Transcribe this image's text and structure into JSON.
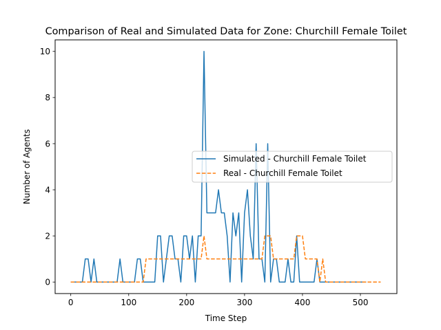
{
  "chart_data": {
    "type": "line",
    "title": "Comparison of Real and Simulated Data for Zone: Churchill Female Toilet",
    "xlabel": "Time Step",
    "ylabel": "Number of Agents",
    "xlim": [
      -27,
      563
    ],
    "ylim": [
      -0.5,
      10.5
    ],
    "xticks": [
      0,
      100,
      200,
      300,
      400,
      500
    ],
    "yticks": [
      0,
      2,
      4,
      6,
      8,
      10
    ],
    "grid": false,
    "legend_position": "center-right",
    "series": [
      {
        "name": "Simulated - Churchill Female Toilet",
        "color": "#1f77b4",
        "style": "solid",
        "points": [
          [
            0,
            0
          ],
          [
            20,
            0
          ],
          [
            25,
            1
          ],
          [
            30,
            1
          ],
          [
            35,
            0
          ],
          [
            40,
            1
          ],
          [
            45,
            0
          ],
          [
            80,
            0
          ],
          [
            85,
            1
          ],
          [
            90,
            0
          ],
          [
            110,
            0
          ],
          [
            115,
            1
          ],
          [
            120,
            1
          ],
          [
            125,
            0
          ],
          [
            145,
            0
          ],
          [
            150,
            2
          ],
          [
            155,
            2
          ],
          [
            160,
            0
          ],
          [
            170,
            2
          ],
          [
            175,
            2
          ],
          [
            180,
            1
          ],
          [
            185,
            1
          ],
          [
            190,
            0
          ],
          [
            195,
            2
          ],
          [
            200,
            2
          ],
          [
            205,
            1
          ],
          [
            210,
            2
          ],
          [
            215,
            0
          ],
          [
            220,
            2
          ],
          [
            225,
            2
          ],
          [
            230,
            10
          ],
          [
            235,
            3
          ],
          [
            240,
            3
          ],
          [
            245,
            3
          ],
          [
            250,
            3
          ],
          [
            255,
            4
          ],
          [
            260,
            3
          ],
          [
            265,
            3
          ],
          [
            270,
            2
          ],
          [
            275,
            0
          ],
          [
            280,
            3
          ],
          [
            285,
            2
          ],
          [
            290,
            3
          ],
          [
            295,
            0
          ],
          [
            300,
            3
          ],
          [
            305,
            4
          ],
          [
            310,
            2
          ],
          [
            315,
            1
          ],
          [
            320,
            6
          ],
          [
            325,
            1
          ],
          [
            330,
            1
          ],
          [
            335,
            0
          ],
          [
            340,
            6
          ],
          [
            345,
            0
          ],
          [
            350,
            1
          ],
          [
            355,
            1
          ],
          [
            360,
            0
          ],
          [
            370,
            0
          ],
          [
            375,
            1
          ],
          [
            380,
            0
          ],
          [
            385,
            0
          ],
          [
            390,
            2
          ],
          [
            395,
            0
          ],
          [
            420,
            0
          ],
          [
            425,
            1
          ],
          [
            430,
            0
          ],
          [
            510,
            0
          ]
        ]
      },
      {
        "name": "Real - Churchill Female Toilet",
        "color": "#ff7f0e",
        "style": "dashed",
        "points": [
          [
            0,
            0
          ],
          [
            125,
            0
          ],
          [
            130,
            1
          ],
          [
            225,
            1
          ],
          [
            230,
            2
          ],
          [
            235,
            1
          ],
          [
            330,
            1
          ],
          [
            335,
            2
          ],
          [
            345,
            2
          ],
          [
            350,
            1
          ],
          [
            385,
            1
          ],
          [
            390,
            2
          ],
          [
            400,
            2
          ],
          [
            405,
            1
          ],
          [
            425,
            1
          ],
          [
            430,
            0
          ],
          [
            435,
            1
          ],
          [
            440,
            0
          ],
          [
            535,
            0
          ]
        ]
      }
    ]
  }
}
